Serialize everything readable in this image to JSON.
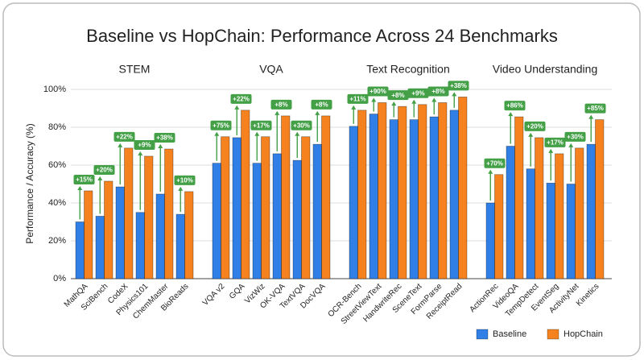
{
  "chart_data": {
    "type": "grouped-bar",
    "title": "Baseline vs HopChain: Performance Across 24 Benchmarks",
    "ylabel": "Performance / Accuracy (%)",
    "ylim": [
      0,
      100
    ],
    "yticks": [
      {
        "value": 0,
        "label": "0%"
      },
      {
        "value": 20,
        "label": "20%"
      },
      {
        "value": 40,
        "label": "40%"
      },
      {
        "value": 60,
        "label": "60%"
      },
      {
        "value": 80,
        "label": "80%"
      },
      {
        "value": 100,
        "label": "100%"
      }
    ],
    "grid": true,
    "legend": "bottom-right",
    "series": [
      {
        "name": "Baseline",
        "color": "#2f7fe6"
      },
      {
        "name": "HopChain",
        "color": "#f5821f"
      }
    ],
    "groups": [
      {
        "name": "STEM",
        "categories": [
          "MathQA",
          "SciBench",
          "CodeX",
          "Physics101",
          "ChemMaster",
          "BioReads"
        ],
        "values": [
          [
            30,
            33,
            48.5,
            35,
            44.7,
            34
          ],
          [
            46.4,
            51.5,
            69,
            64.7,
            68.5,
            46
          ]
        ],
        "annotations": [
          "+15%",
          "+20%",
          "+22%",
          "+9%",
          "+38%",
          "+10%"
        ]
      },
      {
        "name": "VQA",
        "categories": [
          "VQA v2",
          "GQA",
          "VizWiz",
          "OK-VQA",
          "TextVQA",
          "DocVQA"
        ],
        "values": [
          [
            61,
            74.5,
            61,
            66,
            62.5,
            71
          ],
          [
            75,
            89,
            75,
            86,
            75,
            86
          ]
        ],
        "annotations": [
          "+75%",
          "+22%",
          "+17%",
          "+8%",
          "+30%",
          "+8%"
        ]
      },
      {
        "name": "Text Recognition",
        "categories": [
          "OCR-Bench",
          "StreetViewText",
          "HandwriteRec",
          "SceneText",
          "FormParse",
          "ReceiptRead"
        ],
        "values": [
          [
            80.5,
            87,
            84,
            84,
            85.5,
            89
          ],
          [
            89,
            93,
            91,
            92,
            93,
            96
          ]
        ],
        "annotations": [
          "+11%",
          "+90%",
          "+8%",
          "+9%",
          "+8%",
          "+38%"
        ]
      },
      {
        "name": "Video Understanding",
        "categories": [
          "ActionRec",
          "VideoQA",
          "TempDetect",
          "EventSeg",
          "ActivityNet",
          "Kinetics"
        ],
        "values": [
          [
            40,
            70,
            58,
            50.5,
            50,
            71
          ],
          [
            55,
            85.5,
            74.5,
            66,
            69,
            84
          ]
        ],
        "annotations": [
          "+70%",
          "+86%",
          "+20%",
          "+17%",
          "+30%",
          "+85%"
        ]
      }
    ]
  }
}
